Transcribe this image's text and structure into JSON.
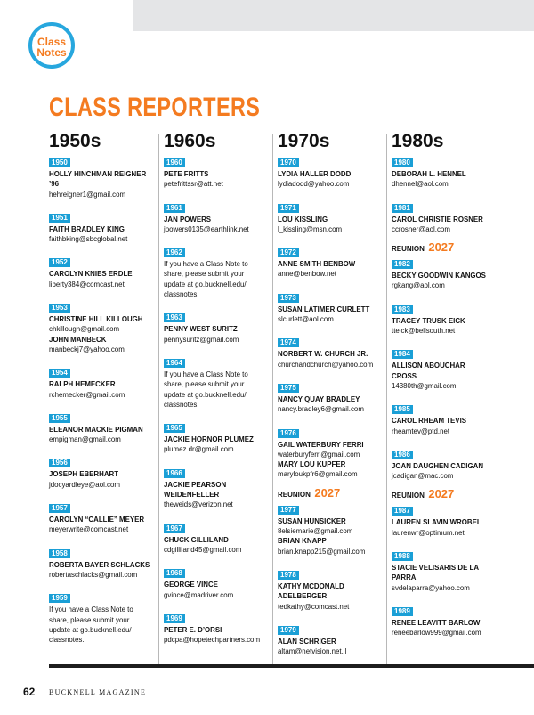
{
  "badge": {
    "line1": "Class",
    "line2": "Notes"
  },
  "title": "CLASS REPORTERS",
  "columns": [
    {
      "heading": "1950s",
      "entries": [
        {
          "year": "1950",
          "reporters": [
            {
              "name": [
                "HOLLY HINCHMAN REIGNER",
                "’96"
              ],
              "email": "hehreigner1@gmail.com"
            }
          ]
        },
        {
          "year": "1951",
          "reporters": [
            {
              "name": [
                "FAITH BRADLEY KING"
              ],
              "email": "faithbking@sbcglobal.net"
            }
          ]
        },
        {
          "year": "1952",
          "reporters": [
            {
              "name": [
                "CAROLYN KNIES ERDLE"
              ],
              "email": "liberty384@comcast.net"
            }
          ]
        },
        {
          "year": "1953",
          "reporters": [
            {
              "name": [
                "CHRISTINE HILL KILLOUGH"
              ],
              "email": "chkillough@gmail.com"
            },
            {
              "name": [
                "JOHN MANBECK"
              ],
              "email": "manbeckj7@yahoo.com"
            }
          ]
        },
        {
          "year": "1954",
          "reporters": [
            {
              "name": [
                "RALPH HEMECKER"
              ],
              "email": "rchemecker@gmail.com"
            }
          ]
        },
        {
          "year": "1955",
          "reporters": [
            {
              "name": [
                "ELEANOR MACKIE PIGMAN"
              ],
              "email": "empigman@gmail.com"
            }
          ]
        },
        {
          "year": "1956",
          "reporters": [
            {
              "name": [
                "JOSEPH EBERHART"
              ],
              "email": "jdocyardleye@aol.com"
            }
          ]
        },
        {
          "year": "1957",
          "reporters": [
            {
              "name": [
                "CAROLYN “CALLIE” MEYER"
              ],
              "email": "meyerwrite@comcast.net"
            }
          ]
        },
        {
          "year": "1958",
          "reporters": [
            {
              "name": [
                "ROBERTA BAYER SCHLACKS"
              ],
              "email": "robertaschlacks@gmail.com"
            }
          ]
        },
        {
          "year": "1959",
          "note": [
            "If you have a Class Note to",
            "share, please submit your",
            "update at go.bucknell.edu/",
            "classnotes."
          ]
        }
      ]
    },
    {
      "heading": "1960s",
      "entries": [
        {
          "year": "1960",
          "reporters": [
            {
              "name": [
                "PETE FRITTS"
              ],
              "email": "petefrittssr@att.net"
            }
          ]
        },
        {
          "year": "1961",
          "reporters": [
            {
              "name": [
                "JAN POWERS"
              ],
              "email": "jpowers0135@earthlink.net"
            }
          ]
        },
        {
          "year": "1962",
          "note": [
            "If you have a Class Note to",
            "share, please submit your",
            "update at go.bucknell.edu/",
            "classnotes."
          ]
        },
        {
          "year": "1963",
          "reporters": [
            {
              "name": [
                "PENNY WEST SURITZ"
              ],
              "email": "pennysuritz@gmail.com"
            }
          ]
        },
        {
          "year": "1964",
          "note": [
            "If you have a Class Note to",
            "share, please submit your",
            "update at go.bucknell.edu/",
            "classnotes."
          ]
        },
        {
          "year": "1965",
          "reporters": [
            {
              "name": [
                "JACKIE HORNOR PLUMEZ"
              ],
              "email": "plumez.dr@gmail.com"
            }
          ]
        },
        {
          "year": "1966",
          "reporters": [
            {
              "name": [
                "JACKIE PEARSON",
                "WEIDENFELLER"
              ],
              "email": "theweids@verizon.net"
            }
          ]
        },
        {
          "year": "1967",
          "reporters": [
            {
              "name": [
                "CHUCK GILLILAND"
              ],
              "email": "cdgilliland45@gmail.com"
            }
          ]
        },
        {
          "year": "1968",
          "reporters": [
            {
              "name": [
                "GEORGE VINCE"
              ],
              "email": "gvince@madriver.com"
            }
          ]
        },
        {
          "year": "1969",
          "reporters": [
            {
              "name": [
                "PETER E. D’ORSI"
              ],
              "email": "pdcpa@hopetechpartners.com"
            }
          ]
        }
      ]
    },
    {
      "heading": "1970s",
      "entries": [
        {
          "year": "1970",
          "reporters": [
            {
              "name": [
                "LYDIA HALLER DODD"
              ],
              "email": "lydiadodd@yahoo.com"
            }
          ]
        },
        {
          "year": "1971",
          "reporters": [
            {
              "name": [
                "LOU KISSLING"
              ],
              "email": "l_kissling@msn.com"
            }
          ]
        },
        {
          "year": "1972",
          "reporters": [
            {
              "name": [
                "ANNE SMITH BENBOW"
              ],
              "email": "anne@benbow.net"
            }
          ]
        },
        {
          "year": "1973",
          "reporters": [
            {
              "name": [
                "SUSAN LATIMER CURLETT"
              ],
              "email": "slcurlett@aol.com"
            }
          ]
        },
        {
          "year": "1974",
          "reporters": [
            {
              "name": [
                "NORBERT W. CHURCH JR."
              ],
              "email": "churchandchurch@yahoo.com"
            }
          ]
        },
        {
          "year": "1975",
          "reporters": [
            {
              "name": [
                "NANCY QUAY BRADLEY"
              ],
              "email": "nancy.bradley6@gmail.com"
            }
          ]
        },
        {
          "year": "1976",
          "reporters": [
            {
              "name": [
                "GAIL WATERBURY FERRI"
              ],
              "email": "waterburyferri@gmail.com"
            },
            {
              "name": [
                "MARY LOU KUPFER"
              ],
              "email": "maryloukpfr6@gmail.com"
            }
          ]
        },
        {
          "reunion": {
            "label": "REUNION",
            "year": "2027"
          }
        },
        {
          "year": "1977",
          "reporters": [
            {
              "name": [
                "SUSAN HUNSICKER"
              ],
              "email": "8elsiemarie@gmail.com"
            },
            {
              "name": [
                "BRIAN KNAPP"
              ],
              "email": "brian.knapp215@gmail.com"
            }
          ]
        },
        {
          "year": "1978",
          "reporters": [
            {
              "name": [
                "KATHY MCDONALD",
                "ADELBERGER"
              ],
              "email": "tedkathy@comcast.net"
            }
          ]
        },
        {
          "year": "1979",
          "reporters": [
            {
              "name": [
                "ALAN SCHRIGER"
              ],
              "email": "altam@netvision.net.il"
            }
          ]
        }
      ]
    },
    {
      "heading": "1980s",
      "entries": [
        {
          "year": "1980",
          "reporters": [
            {
              "name": [
                "DEBORAH L. HENNEL"
              ],
              "email": "dhennel@aol.com"
            }
          ]
        },
        {
          "year": "1981",
          "reporters": [
            {
              "name": [
                "CAROL CHRISTIE ROSNER"
              ],
              "email": "ccrosner@aol.com"
            }
          ]
        },
        {
          "reunion": {
            "label": "REUNION",
            "year": "2027"
          }
        },
        {
          "year": "1982",
          "reporters": [
            {
              "name": [
                "BECKY GOODWIN KANGOS"
              ],
              "email": "rgkang@aol.com"
            }
          ]
        },
        {
          "year": "1983",
          "reporters": [
            {
              "name": [
                "TRACEY TRUSK EICK"
              ],
              "email": "tteick@bellsouth.net"
            }
          ]
        },
        {
          "year": "1984",
          "reporters": [
            {
              "name": [
                "ALLISON ABOUCHAR",
                "CROSS"
              ],
              "email": "14380th@gmail.com"
            }
          ]
        },
        {
          "year": "1985",
          "reporters": [
            {
              "name": [
                "CAROL RHEAM TEVIS"
              ],
              "email": "rheamtev@ptd.net"
            }
          ]
        },
        {
          "year": "1986",
          "reporters": [
            {
              "name": [
                "JOAN DAUGHEN CADIGAN"
              ],
              "email": "jcadigan@mac.com"
            }
          ]
        },
        {
          "reunion": {
            "label": "REUNION",
            "year": "2027"
          }
        },
        {
          "year": "1987",
          "reporters": [
            {
              "name": [
                "LAUREN SLAVIN WROBEL"
              ],
              "email": "laurenwr@optimum.net"
            }
          ]
        },
        {
          "year": "1988",
          "reporters": [
            {
              "name": [
                "STACIE VELISARIS DE LA",
                "PARRA"
              ],
              "email": "svdelaparra@yahoo.com"
            }
          ]
        },
        {
          "year": "1989",
          "reporters": [
            {
              "name": [
                "RENEE LEAVITT BARLOW"
              ],
              "email": "reneebarlow999@gmail.com"
            }
          ]
        }
      ]
    }
  ],
  "footer": {
    "page": "62",
    "magazine": "BUCKNELL MAGAZINE"
  }
}
